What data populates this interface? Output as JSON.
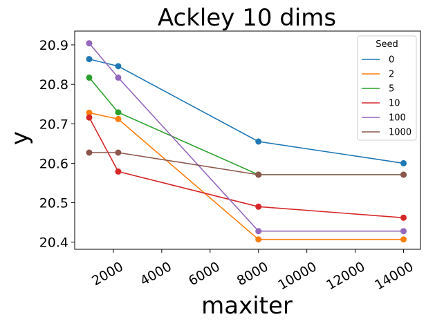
{
  "chart_data": {
    "type": "line",
    "title": "Ackley 10 dims",
    "xlabel": "maxiter",
    "ylabel": "y",
    "x": [
      1000,
      2200,
      8000,
      14000
    ],
    "xlim": [
      400,
      14700
    ],
    "ylim": [
      20.382,
      20.935
    ],
    "xticks": [
      2000,
      4000,
      6000,
      8000,
      10000,
      12000,
      14000
    ],
    "xtick_labels": [
      "2000",
      "4000",
      "6000",
      "8000",
      "10000",
      "12000",
      "14000"
    ],
    "yticks": [
      20.4,
      20.5,
      20.6,
      20.7,
      20.8,
      20.9
    ],
    "ytick_labels": [
      "20.4",
      "20.5",
      "20.6",
      "20.7",
      "20.8",
      "20.9"
    ],
    "grid": false,
    "legend": {
      "title": "Seed",
      "placement": "upper right"
    },
    "series": [
      {
        "name": "0",
        "color": "#1f77b4",
        "values": [
          20.864,
          20.846,
          20.655,
          20.6
        ]
      },
      {
        "name": "2",
        "color": "#ff7f0e",
        "values": [
          20.728,
          20.712,
          20.407,
          20.407
        ]
      },
      {
        "name": "5",
        "color": "#2ca02c",
        "values": [
          20.817,
          20.729,
          20.571,
          20.571
        ]
      },
      {
        "name": "10",
        "color": "#d62728",
        "values": [
          20.716,
          20.579,
          20.49,
          20.462
        ]
      },
      {
        "name": "100",
        "color": "#9467bd",
        "values": [
          20.904,
          20.817,
          20.428,
          20.428
        ]
      },
      {
        "name": "1000",
        "color": "#8c564b",
        "values": [
          20.627,
          20.627,
          20.571,
          20.571
        ]
      }
    ]
  }
}
